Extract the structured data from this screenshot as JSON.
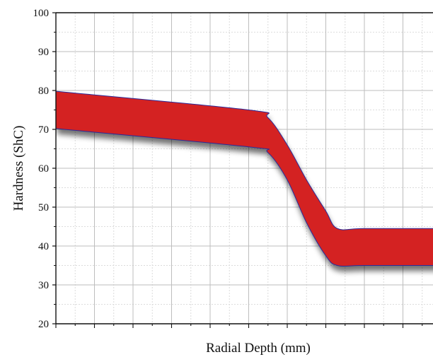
{
  "chart_data": {
    "type": "area",
    "title": "",
    "xlabel": "Radial Depth (mm)",
    "ylabel": "Hardness (ShC)",
    "ylim": [
      20,
      100
    ],
    "yticks": [
      20,
      30,
      40,
      50,
      60,
      70,
      80,
      90,
      100
    ],
    "xlim": [
      0,
      10
    ],
    "x_tick_labels_shown": false,
    "grid": true,
    "legend": "none",
    "band_color": "#d42222",
    "band_edge_color": "#2a2a9a",
    "series": [
      {
        "upper": {
          "x": [
            0,
            5,
            5.5,
            6,
            6.5,
            7,
            7.3,
            8,
            10
          ],
          "y": [
            79.8,
            75,
            73,
            66,
            57,
            49,
            44.5,
            44.5,
            44.5
          ]
        },
        "lower": {
          "x": [
            0,
            5,
            5.5,
            6,
            6.5,
            7,
            7.3,
            8,
            10
          ],
          "y": [
            70.2,
            65.5,
            64,
            57,
            46,
            37.5,
            35,
            35,
            35
          ]
        }
      }
    ]
  }
}
